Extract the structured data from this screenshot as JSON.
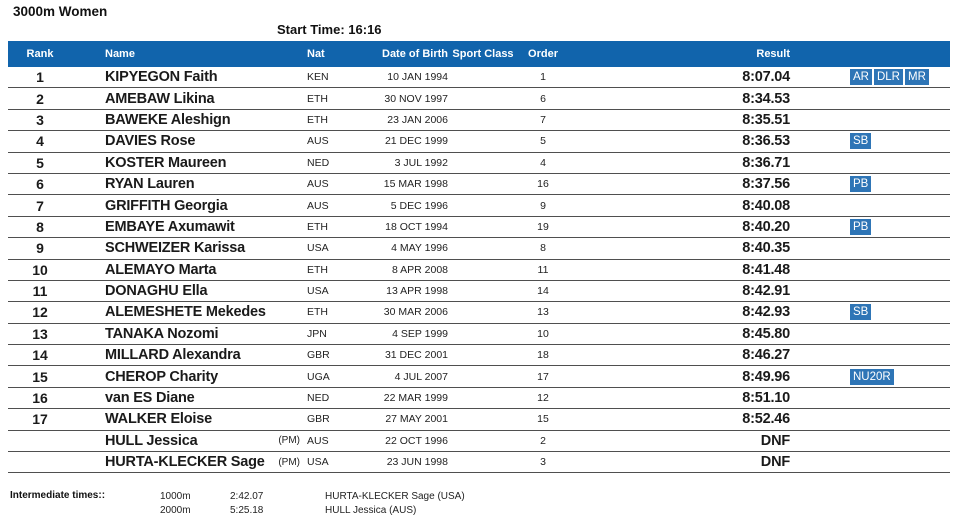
{
  "page": {
    "title": "3000m Women",
    "start_time": "Start Time:  16:16"
  },
  "colors": {
    "header_blue": "#1164ac",
    "badge_blue": "#2e75b6"
  },
  "table": {
    "columns": {
      "rank": "Rank",
      "name": "Name",
      "nat": "Nat",
      "dob": "Date of Birth",
      "sport_class": "Sport Class",
      "order": "Order",
      "result": "Result"
    },
    "rows": [
      {
        "rank": "1",
        "name": "KIPYEGON Faith",
        "pm": "",
        "nat": "KEN",
        "dob": "10 JAN 1994",
        "sport_class": "",
        "order": "1",
        "result": "8:07.04",
        "badges": [
          "AR",
          "DLR",
          "MR"
        ]
      },
      {
        "rank": "2",
        "name": "AMEBAW Likina",
        "pm": "",
        "nat": "ETH",
        "dob": "30 NOV 1997",
        "sport_class": "",
        "order": "6",
        "result": "8:34.53",
        "badges": []
      },
      {
        "rank": "3",
        "name": "BAWEKE Aleshign",
        "pm": "",
        "nat": "ETH",
        "dob": "23 JAN 2006",
        "sport_class": "",
        "order": "7",
        "result": "8:35.51",
        "badges": []
      },
      {
        "rank": "4",
        "name": "DAVIES Rose",
        "pm": "",
        "nat": "AUS",
        "dob": "21 DEC 1999",
        "sport_class": "",
        "order": "5",
        "result": "8:36.53",
        "badges": [
          "SB"
        ]
      },
      {
        "rank": "5",
        "name": "KOSTER Maureen",
        "pm": "",
        "nat": "NED",
        "dob": "3 JUL 1992",
        "sport_class": "",
        "order": "4",
        "result": "8:36.71",
        "badges": []
      },
      {
        "rank": "6",
        "name": "RYAN Lauren",
        "pm": "",
        "nat": "AUS",
        "dob": "15 MAR 1998",
        "sport_class": "",
        "order": "16",
        "result": "8:37.56",
        "badges": [
          "PB"
        ]
      },
      {
        "rank": "7",
        "name": "GRIFFITH Georgia",
        "pm": "",
        "nat": "AUS",
        "dob": "5 DEC 1996",
        "sport_class": "",
        "order": "9",
        "result": "8:40.08",
        "badges": []
      },
      {
        "rank": "8",
        "name": "EMBAYE Axumawit",
        "pm": "",
        "nat": "ETH",
        "dob": "18 OCT 1994",
        "sport_class": "",
        "order": "19",
        "result": "8:40.20",
        "badges": [
          "PB"
        ]
      },
      {
        "rank": "9",
        "name": "SCHWEIZER Karissa",
        "pm": "",
        "nat": "USA",
        "dob": "4 MAY 1996",
        "sport_class": "",
        "order": "8",
        "result": "8:40.35",
        "badges": []
      },
      {
        "rank": "10",
        "name": "ALEMAYO Marta",
        "pm": "",
        "nat": "ETH",
        "dob": "8 APR 2008",
        "sport_class": "",
        "order": "11",
        "result": "8:41.48",
        "badges": []
      },
      {
        "rank": "11",
        "name": "DONAGHU Ella",
        "pm": "",
        "nat": "USA",
        "dob": "13 APR 1998",
        "sport_class": "",
        "order": "14",
        "result": "8:42.91",
        "badges": []
      },
      {
        "rank": "12",
        "name": "ALEMESHETE Mekedes",
        "pm": "",
        "nat": "ETH",
        "dob": "30 MAR 2006",
        "sport_class": "",
        "order": "13",
        "result": "8:42.93",
        "badges": [
          "SB"
        ]
      },
      {
        "rank": "13",
        "name": "TANAKA Nozomi",
        "pm": "",
        "nat": "JPN",
        "dob": "4 SEP 1999",
        "sport_class": "",
        "order": "10",
        "result": "8:45.80",
        "badges": []
      },
      {
        "rank": "14",
        "name": "MILLARD Alexandra",
        "pm": "",
        "nat": "GBR",
        "dob": "31 DEC 2001",
        "sport_class": "",
        "order": "18",
        "result": "8:46.27",
        "badges": []
      },
      {
        "rank": "15",
        "name": "CHEROP Charity",
        "pm": "",
        "nat": "UGA",
        "dob": "4 JUL 2007",
        "sport_class": "",
        "order": "17",
        "result": "8:49.96",
        "badges": [
          "NU20R"
        ]
      },
      {
        "rank": "16",
        "name": "van ES Diane",
        "pm": "",
        "nat": "NED",
        "dob": "22 MAR 1999",
        "sport_class": "",
        "order": "12",
        "result": "8:51.10",
        "badges": []
      },
      {
        "rank": "17",
        "name": "WALKER Eloise",
        "pm": "",
        "nat": "GBR",
        "dob": "27 MAY 2001",
        "sport_class": "",
        "order": "15",
        "result": "8:52.46",
        "badges": []
      },
      {
        "rank": "",
        "name": "HULL Jessica",
        "pm": "(PM)",
        "nat": "AUS",
        "dob": "22 OCT 1996",
        "sport_class": "",
        "order": "2",
        "result": "DNF",
        "badges": []
      },
      {
        "rank": "",
        "name": "HURTA-KLECKER Sage",
        "pm": "(PM)",
        "nat": "USA",
        "dob": "23 JUN 1998",
        "sport_class": "",
        "order": "3",
        "result": "DNF",
        "badges": []
      }
    ]
  },
  "footer": {
    "label": "Intermediate times::",
    "splits": [
      {
        "distance": "1000m",
        "time": "2:42.07",
        "athlete": "HURTA-KLECKER Sage (USA)"
      },
      {
        "distance": "2000m",
        "time": "5:25.18",
        "athlete": "HULL Jessica (AUS)"
      }
    ]
  }
}
